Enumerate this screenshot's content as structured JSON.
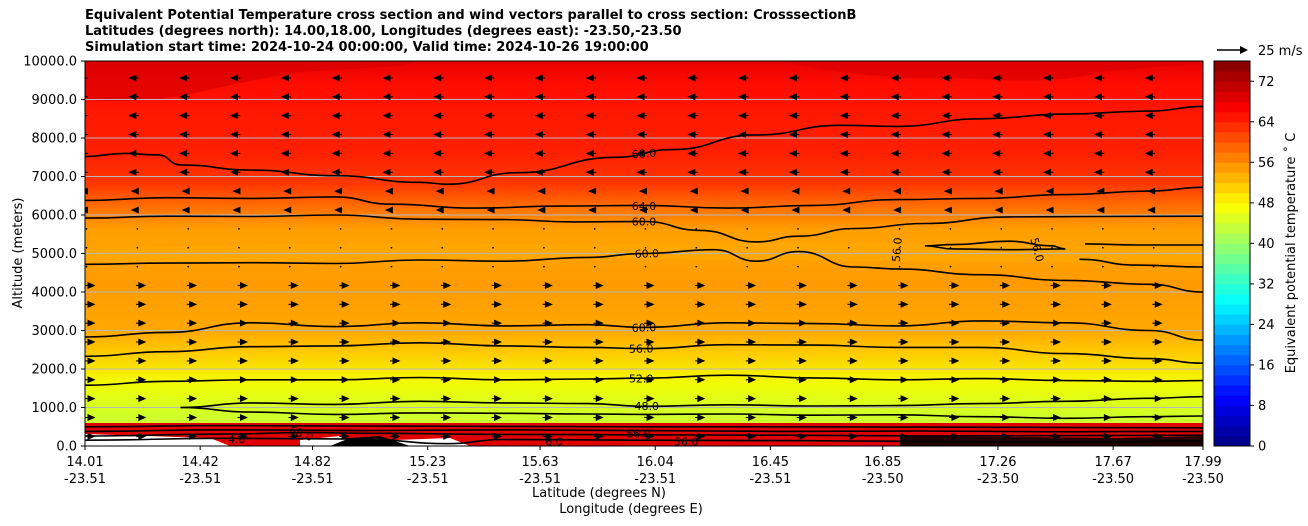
{
  "chart_data": {
    "type": "heatmap",
    "title_lines": [
      "Equivalent Potential Temperature cross section and wind vectors parallel to cross section: CrosssectionB",
      "Latitudes (degrees north): 14.00,18.00, Longitudes (degrees east): -23.50,-23.50",
      "Simulation start time: 2024-10-24 00:00:00, Valid time: 2024-10-26 19:00:00"
    ],
    "ylabel": "Altitude (meters)",
    "xlabel_lat": "Latitude (degrees N)",
    "xlabel_lon": "Longitude (degrees E)",
    "ylim": [
      0,
      10000
    ],
    "y_ticks": [
      "0.0",
      "1000.0",
      "2000.0",
      "3000.0",
      "4000.0",
      "5000.0",
      "6000.0",
      "7000.0",
      "8000.0",
      "9000.0",
      "10000.0"
    ],
    "y_tick_values": [
      0,
      1000,
      2000,
      3000,
      4000,
      5000,
      6000,
      7000,
      8000,
      9000,
      10000
    ],
    "xlim": [
      14.01,
      17.99
    ],
    "x_ticks": [
      {
        "lat": 14.01,
        "lat_label": "14.01",
        "lon_label": "-23.51"
      },
      {
        "lat": 14.42,
        "lat_label": "14.42",
        "lon_label": "-23.51"
      },
      {
        "lat": 14.82,
        "lat_label": "14.82",
        "lon_label": "-23.51"
      },
      {
        "lat": 15.23,
        "lat_label": "15.23",
        "lon_label": "-23.51"
      },
      {
        "lat": 15.63,
        "lat_label": "15.63",
        "lon_label": "-23.51"
      },
      {
        "lat": 16.04,
        "lat_label": "16.04",
        "lon_label": "-23.51"
      },
      {
        "lat": 16.45,
        "lat_label": "16.45",
        "lon_label": "-23.51"
      },
      {
        "lat": 16.85,
        "lat_label": "16.85",
        "lon_label": "-23.50"
      },
      {
        "lat": 17.26,
        "lat_label": "17.26",
        "lon_label": "-23.50"
      },
      {
        "lat": 17.67,
        "lat_label": "17.67",
        "lon_label": "-23.50"
      },
      {
        "lat": 17.99,
        "lat_label": "17.99",
        "lon_label": "-23.50"
      }
    ],
    "colorbar": {
      "label": "Equivalent potential temperature $^\\circ$C",
      "label_text": "Equivalent potential temperature ˚ C",
      "min": 0,
      "max": 76,
      "step": 2,
      "tick_values": [
        0,
        8,
        16,
        24,
        32,
        40,
        48,
        56,
        64,
        72
      ],
      "tick_labels": [
        "0",
        "8",
        "16",
        "24",
        "32",
        "40",
        "48",
        "56",
        "64",
        "72"
      ],
      "colormap": "jet"
    },
    "quiver_key": {
      "label": "25 m/s",
      "speed": 25
    },
    "contour_labels": [
      {
        "text": "68.0",
        "lat": 16.0,
        "alt": 7600,
        "rotate": -4
      },
      {
        "text": "64.0",
        "lat": 16.0,
        "alt": 6230,
        "rotate": 0
      },
      {
        "text": "60.0",
        "lat": 16.0,
        "alt": 5830,
        "rotate": 0
      },
      {
        "text": "60.0",
        "lat": 16.01,
        "alt": 5000,
        "rotate": -2
      },
      {
        "text": "56.0",
        "lat": 16.9,
        "alt": 5100,
        "rotate": -85
      },
      {
        "text": "56.0",
        "lat": 17.4,
        "alt": 5100,
        "rotate": 75
      },
      {
        "text": "60.0",
        "lat": 16.0,
        "alt": 3080,
        "rotate": -2
      },
      {
        "text": "56.0",
        "lat": 15.99,
        "alt": 2530,
        "rotate": -1
      },
      {
        "text": "52.0",
        "lat": 15.99,
        "alt": 1750,
        "rotate": 0
      },
      {
        "text": "48.0",
        "lat": 16.01,
        "alt": 1040,
        "rotate": 0
      },
      {
        "text": "6.0",
        "lat": 15.68,
        "alt": 120,
        "rotate": 0
      },
      {
        "text": "56.0",
        "lat": 16.15,
        "alt": 120,
        "rotate": 0
      },
      {
        "text": "66.0",
        "lat": 15.98,
        "alt": 330,
        "rotate": 0
      },
      {
        "text": "68.0",
        "lat": 14.78,
        "alt": 330,
        "rotate": 20
      },
      {
        "text": "4.0",
        "lat": 14.55,
        "alt": 180,
        "rotate": 0
      }
    ],
    "contours": [
      {
        "level": 68,
        "points": [
          [
            14.01,
            7520
          ],
          [
            14.15,
            7600
          ],
          [
            14.27,
            7560
          ],
          [
            14.35,
            7300
          ],
          [
            14.6,
            7170
          ],
          [
            14.9,
            7020
          ],
          [
            15.2,
            6850
          ],
          [
            15.3,
            6800
          ],
          [
            15.55,
            7100
          ],
          [
            15.9,
            7500
          ],
          [
            16.1,
            7700
          ],
          [
            16.4,
            8080
          ],
          [
            16.7,
            8330
          ],
          [
            16.9,
            8300
          ],
          [
            17.2,
            8500
          ],
          [
            17.5,
            8620
          ],
          [
            17.8,
            8700
          ],
          [
            17.99,
            8820
          ]
        ]
      },
      {
        "level": 64,
        "points": [
          [
            14.01,
            6380
          ],
          [
            14.3,
            6450
          ],
          [
            14.6,
            6430
          ],
          [
            14.9,
            6470
          ],
          [
            15.1,
            6280
          ],
          [
            15.4,
            6180
          ],
          [
            15.7,
            6230
          ],
          [
            16.0,
            6250
          ],
          [
            16.3,
            6180
          ],
          [
            16.6,
            6250
          ],
          [
            16.9,
            6400
          ],
          [
            17.2,
            6430
          ],
          [
            17.5,
            6530
          ],
          [
            17.8,
            6620
          ],
          [
            17.99,
            6720
          ]
        ]
      },
      {
        "level": 60,
        "points": [
          [
            14.01,
            5920
          ],
          [
            14.3,
            5970
          ],
          [
            14.6,
            5960
          ],
          [
            14.9,
            6000
          ],
          [
            15.2,
            5890
          ],
          [
            15.5,
            5880
          ],
          [
            15.75,
            5820
          ],
          [
            16.0,
            5830
          ],
          [
            16.2,
            5600
          ],
          [
            16.4,
            5300
          ],
          [
            16.55,
            5450
          ],
          [
            16.75,
            5650
          ],
          [
            17.0,
            5780
          ],
          [
            17.3,
            5950
          ],
          [
            17.6,
            5960
          ],
          [
            17.99,
            5970
          ]
        ]
      },
      {
        "level": 60,
        "points": [
          [
            14.01,
            4720
          ],
          [
            14.3,
            4750
          ],
          [
            14.6,
            4760
          ],
          [
            14.9,
            4740
          ],
          [
            15.2,
            4830
          ],
          [
            15.5,
            4800
          ],
          [
            15.8,
            4900
          ],
          [
            16.0,
            5000
          ],
          [
            16.25,
            5100
          ],
          [
            16.4,
            4800
          ],
          [
            16.55,
            5050
          ],
          [
            16.75,
            4650
          ],
          [
            16.9,
            4600
          ],
          [
            17.2,
            4450
          ],
          [
            17.5,
            4300
          ],
          [
            17.8,
            4200
          ],
          [
            17.99,
            4000
          ]
        ]
      },
      {
        "level": 56,
        "points": [
          [
            17.0,
            5200
          ],
          [
            17.1,
            5230
          ],
          [
            17.3,
            5320
          ],
          [
            17.45,
            5200
          ],
          [
            17.5,
            5120
          ],
          [
            17.3,
            5100
          ],
          [
            17.1,
            5120
          ],
          [
            17.0,
            5200
          ]
        ]
      },
      {
        "level": 56,
        "points": [
          [
            17.57,
            5250
          ],
          [
            17.75,
            5220
          ],
          [
            17.99,
            5220
          ]
        ]
      },
      {
        "level": 56,
        "points": [
          [
            17.55,
            4850
          ],
          [
            17.75,
            4700
          ],
          [
            17.99,
            4650
          ]
        ]
      },
      {
        "level": 60,
        "points": [
          [
            14.01,
            2830
          ],
          [
            14.3,
            2950
          ],
          [
            14.6,
            3200
          ],
          [
            14.9,
            3100
          ],
          [
            15.2,
            3200
          ],
          [
            15.5,
            3120
          ],
          [
            15.8,
            3150
          ],
          [
            16.0,
            3080
          ],
          [
            16.3,
            3200
          ],
          [
            16.6,
            3180
          ],
          [
            16.9,
            3120
          ],
          [
            17.2,
            3250
          ],
          [
            17.5,
            3200
          ],
          [
            17.8,
            3000
          ],
          [
            17.99,
            2750
          ]
        ]
      },
      {
        "level": 56,
        "points": [
          [
            14.01,
            2330
          ],
          [
            14.3,
            2450
          ],
          [
            14.6,
            2580
          ],
          [
            14.9,
            2600
          ],
          [
            15.2,
            2680
          ],
          [
            15.5,
            2600
          ],
          [
            15.8,
            2560
          ],
          [
            16.0,
            2530
          ],
          [
            16.3,
            2630
          ],
          [
            16.6,
            2620
          ],
          [
            16.9,
            2560
          ],
          [
            17.2,
            2560
          ],
          [
            17.5,
            2400
          ],
          [
            17.8,
            2270
          ],
          [
            17.99,
            2150
          ]
        ]
      },
      {
        "level": 52,
        "points": [
          [
            14.01,
            1580
          ],
          [
            14.3,
            1680
          ],
          [
            14.6,
            1720
          ],
          [
            14.9,
            1720
          ],
          [
            15.2,
            1780
          ],
          [
            15.5,
            1720
          ],
          [
            15.8,
            1740
          ],
          [
            16.0,
            1760
          ],
          [
            16.3,
            1840
          ],
          [
            16.6,
            1770
          ],
          [
            16.9,
            1720
          ],
          [
            17.2,
            1750
          ],
          [
            17.5,
            1700
          ],
          [
            17.8,
            1680
          ],
          [
            17.99,
            1700
          ]
        ]
      },
      {
        "level": 48,
        "points": [
          [
            14.35,
            1000
          ],
          [
            14.6,
            1120
          ],
          [
            14.9,
            1080
          ],
          [
            15.2,
            1160
          ],
          [
            15.5,
            1120
          ],
          [
            15.8,
            1100
          ],
          [
            16.0,
            1030
          ],
          [
            16.3,
            1070
          ],
          [
            16.6,
            1040
          ],
          [
            16.9,
            1050
          ],
          [
            17.2,
            1100
          ],
          [
            17.5,
            1160
          ],
          [
            17.8,
            1240
          ],
          [
            17.99,
            1280
          ]
        ]
      },
      {
        "level": 48,
        "points": [
          [
            14.35,
            1000
          ],
          [
            14.6,
            880
          ],
          [
            14.9,
            820
          ],
          [
            15.2,
            860
          ],
          [
            15.5,
            850
          ],
          [
            15.8,
            830
          ],
          [
            16.0,
            820
          ],
          [
            16.3,
            830
          ],
          [
            16.6,
            800
          ],
          [
            16.9,
            810
          ],
          [
            17.2,
            760
          ],
          [
            17.5,
            720
          ],
          [
            17.8,
            760
          ],
          [
            17.99,
            780
          ]
        ]
      },
      {
        "level": 64,
        "points": [
          [
            14.01,
            500
          ],
          [
            14.5,
            530
          ],
          [
            15.0,
            520
          ],
          [
            15.5,
            510
          ],
          [
            16.0,
            500
          ],
          [
            16.5,
            500
          ],
          [
            17.0,
            490
          ],
          [
            17.5,
            480
          ],
          [
            17.99,
            470
          ]
        ]
      },
      {
        "level": 66,
        "points": [
          [
            14.01,
            380
          ],
          [
            14.5,
            420
          ],
          [
            15.0,
            400
          ],
          [
            15.5,
            420
          ],
          [
            16.0,
            400
          ],
          [
            16.5,
            380
          ],
          [
            17.0,
            390
          ],
          [
            17.5,
            370
          ],
          [
            17.99,
            380
          ]
        ]
      },
      {
        "level": 68,
        "points": [
          [
            14.01,
            260
          ],
          [
            14.5,
            310
          ],
          [
            14.8,
            350
          ],
          [
            15.0,
            330
          ],
          [
            15.5,
            300
          ],
          [
            16.0,
            290
          ],
          [
            16.5,
            280
          ],
          [
            17.0,
            260
          ],
          [
            17.5,
            270
          ],
          [
            17.99,
            280
          ]
        ]
      },
      {
        "level": 68,
        "points": [
          [
            14.01,
            150
          ],
          [
            14.5,
            200
          ],
          [
            15.0,
            180
          ],
          [
            15.3,
            60
          ],
          [
            15.5,
            170
          ],
          [
            16.0,
            150
          ],
          [
            16.5,
            140
          ],
          [
            17.0,
            120
          ],
          [
            17.5,
            100
          ],
          [
            17.99,
            130
          ]
        ]
      }
    ]
  }
}
